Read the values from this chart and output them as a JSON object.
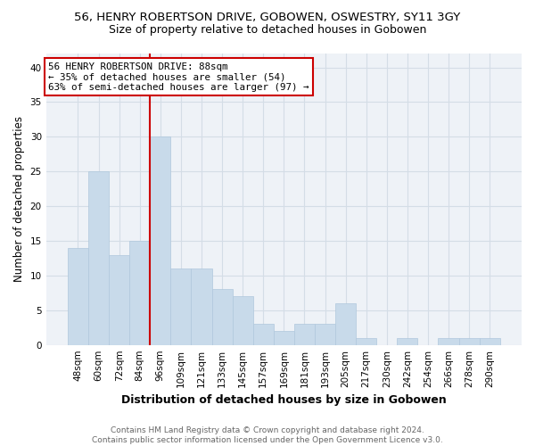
{
  "title1": "56, HENRY ROBERTSON DRIVE, GOBOWEN, OSWESTRY, SY11 3GY",
  "title2": "Size of property relative to detached houses in Gobowen",
  "xlabel": "Distribution of detached houses by size in Gobowen",
  "ylabel": "Number of detached properties",
  "categories": [
    "48sqm",
    "60sqm",
    "72sqm",
    "84sqm",
    "96sqm",
    "109sqm",
    "121sqm",
    "133sqm",
    "145sqm",
    "157sqm",
    "169sqm",
    "181sqm",
    "193sqm",
    "205sqm",
    "217sqm",
    "230sqm",
    "242sqm",
    "254sqm",
    "266sqm",
    "278sqm",
    "290sqm"
  ],
  "values": [
    14,
    25,
    13,
    15,
    30,
    11,
    11,
    8,
    7,
    3,
    2,
    3,
    3,
    6,
    1,
    0,
    1,
    0,
    1,
    1,
    1
  ],
  "bar_color": "#c8daea",
  "bar_edge_color": "#b0c8dc",
  "vline_x": 3.5,
  "vline_color": "#cc0000",
  "annotation_line1": "56 HENRY ROBERTSON DRIVE: 88sqm",
  "annotation_line2": "← 35% of detached houses are smaller (54)",
  "annotation_line3": "63% of semi-detached houses are larger (97) →",
  "annotation_box_color": "#ffffff",
  "annotation_box_edge": "#cc0000",
  "ylim": [
    0,
    42
  ],
  "yticks": [
    0,
    5,
    10,
    15,
    20,
    25,
    30,
    35,
    40
  ],
  "footer": "Contains HM Land Registry data © Crown copyright and database right 2024.\nContains public sector information licensed under the Open Government Licence v3.0.",
  "grid_color": "#d4dde6",
  "bg_color": "#eef2f7",
  "title1_fontsize": 9.5,
  "title2_fontsize": 9,
  "annotation_fontsize": 7.8,
  "ylabel_fontsize": 8.5,
  "xlabel_fontsize": 9,
  "tick_fontsize": 7.5,
  "footer_fontsize": 6.5,
  "footer_color": "#666666"
}
